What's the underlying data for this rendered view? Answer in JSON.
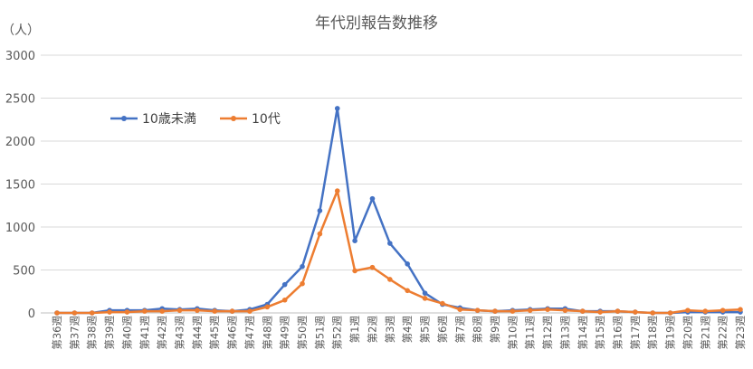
{
  "chart_data": {
    "type": "line",
    "title": "年代別報告数推移",
    "ylabel": "（人）",
    "xlabel": "",
    "ylim": [
      0,
      3000
    ],
    "yticks": [
      0,
      500,
      1000,
      1500,
      2000,
      2500,
      3000
    ],
    "grid": true,
    "legend": "top-left",
    "categories": [
      "第36週",
      "第37週",
      "第38週",
      "第39週",
      "第40週",
      "第41週",
      "第42週",
      "第43週",
      "第44週",
      "第45週",
      "第46週",
      "第47週",
      "第48週",
      "第49週",
      "第50週",
      "第51週",
      "第52週",
      "第1週",
      "第2週",
      "第3週",
      "第4週",
      "第5週",
      "第6週",
      "第7週",
      "第8週",
      "第9週",
      "第10週",
      "第11週",
      "第12週",
      "第13週",
      "第14週",
      "第15週",
      "第16週",
      "第17週",
      "第18週",
      "第19週",
      "第20週",
      "第21週",
      "第22週",
      "第23週"
    ],
    "series": [
      {
        "name": "10歳未満",
        "color": "#4472C4",
        "values": [
          0,
          0,
          0,
          30,
          30,
          30,
          50,
          40,
          50,
          30,
          20,
          40,
          100,
          330,
          540,
          1190,
          2380,
          840,
          1330,
          810,
          570,
          230,
          100,
          60,
          30,
          20,
          30,
          40,
          50,
          50,
          20,
          20,
          20,
          10,
          0,
          0,
          10,
          10,
          10,
          10
        ]
      },
      {
        "name": "10代",
        "color": "#ED7D31",
        "values": [
          0,
          0,
          0,
          10,
          10,
          20,
          20,
          30,
          30,
          20,
          20,
          20,
          70,
          150,
          340,
          920,
          1420,
          490,
          530,
          390,
          260,
          170,
          110,
          40,
          30,
          20,
          20,
          30,
          40,
          30,
          20,
          10,
          20,
          10,
          0,
          0,
          30,
          20,
          30,
          40
        ]
      }
    ]
  }
}
